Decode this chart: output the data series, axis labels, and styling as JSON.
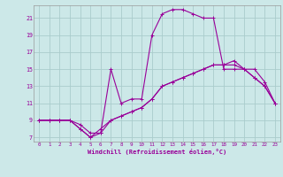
{
  "xlabel": "Windchill (Refroidissement éolien,°C)",
  "background_color": "#cce8e8",
  "line_color": "#990099",
  "grid_color": "#aacccc",
  "xlim": [
    -0.5,
    23.5
  ],
  "ylim": [
    6.5,
    22.5
  ],
  "xticks": [
    0,
    1,
    2,
    3,
    4,
    5,
    6,
    7,
    8,
    9,
    10,
    11,
    12,
    13,
    14,
    15,
    16,
    17,
    18,
    19,
    20,
    21,
    22,
    23
  ],
  "yticks": [
    7,
    9,
    11,
    13,
    15,
    17,
    19,
    21
  ],
  "curve1_x": [
    0,
    1,
    2,
    3,
    4,
    5,
    6,
    7,
    8,
    9,
    10,
    11,
    12,
    13,
    14,
    15,
    16,
    17,
    18,
    19,
    20,
    21,
    22,
    23
  ],
  "curve1_y": [
    9,
    9,
    9,
    9,
    8.5,
    7.5,
    7.5,
    15,
    11,
    11.5,
    11.5,
    19,
    21.5,
    22,
    22,
    21.5,
    21,
    21,
    15,
    15,
    15,
    15,
    13.5,
    11
  ],
  "curve2_x": [
    0,
    1,
    2,
    3,
    4,
    5,
    6,
    7,
    8,
    9,
    10,
    11,
    12,
    13,
    14,
    15,
    16,
    17,
    18,
    19,
    20,
    21,
    22,
    23
  ],
  "curve2_y": [
    9,
    9,
    9,
    9,
    8,
    7,
    7.5,
    9,
    9.5,
    10,
    10.5,
    11.5,
    13,
    13.5,
    14,
    14.5,
    15,
    15.5,
    15.5,
    15.5,
    15,
    14,
    13,
    11
  ],
  "curve3_x": [
    0,
    1,
    2,
    3,
    4,
    5,
    6,
    7,
    8,
    9,
    10,
    11,
    12,
    13,
    14,
    15,
    16,
    17,
    18,
    19,
    20,
    21,
    22,
    23
  ],
  "curve3_y": [
    9,
    9,
    9,
    9,
    8,
    7,
    8,
    9,
    9.5,
    10,
    10.5,
    11.5,
    13,
    13.5,
    14,
    14.5,
    15,
    15.5,
    15.5,
    16,
    15,
    14,
    13,
    11
  ]
}
